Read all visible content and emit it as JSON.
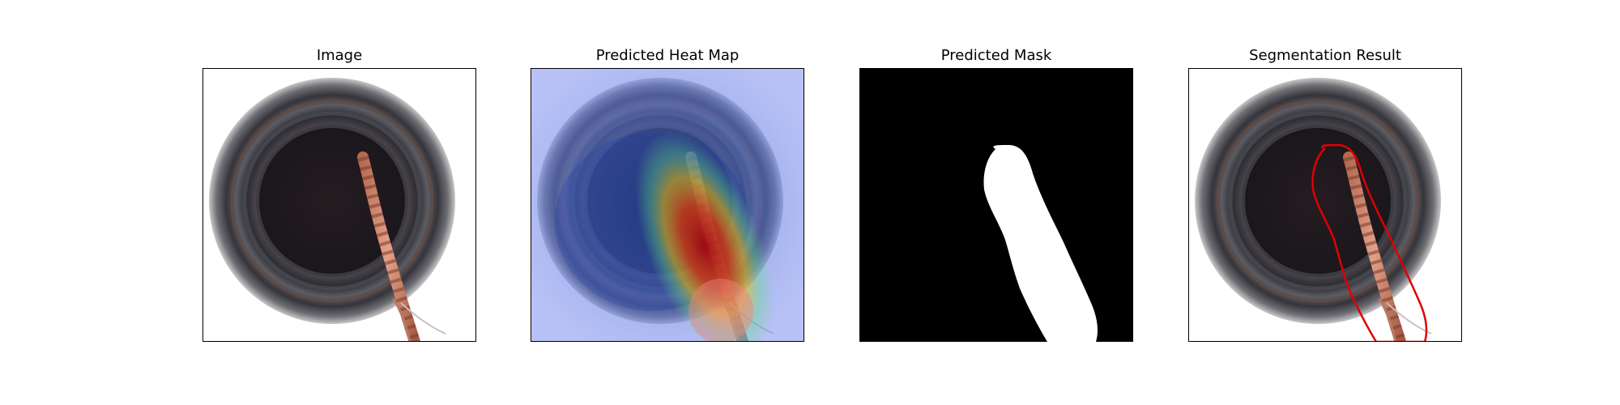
{
  "figure": {
    "panels": [
      {
        "title": "Image"
      },
      {
        "title": "Predicted Heat Map"
      },
      {
        "title": "Predicted Mask"
      },
      {
        "title": "Segmentation Result"
      }
    ]
  },
  "colors": {
    "background": "#ffffff",
    "frame": "#000000",
    "contour": "#e00000",
    "mask_fg": "#ffffff",
    "mask_bg": "#000000",
    "rope": "#c9785a"
  }
}
